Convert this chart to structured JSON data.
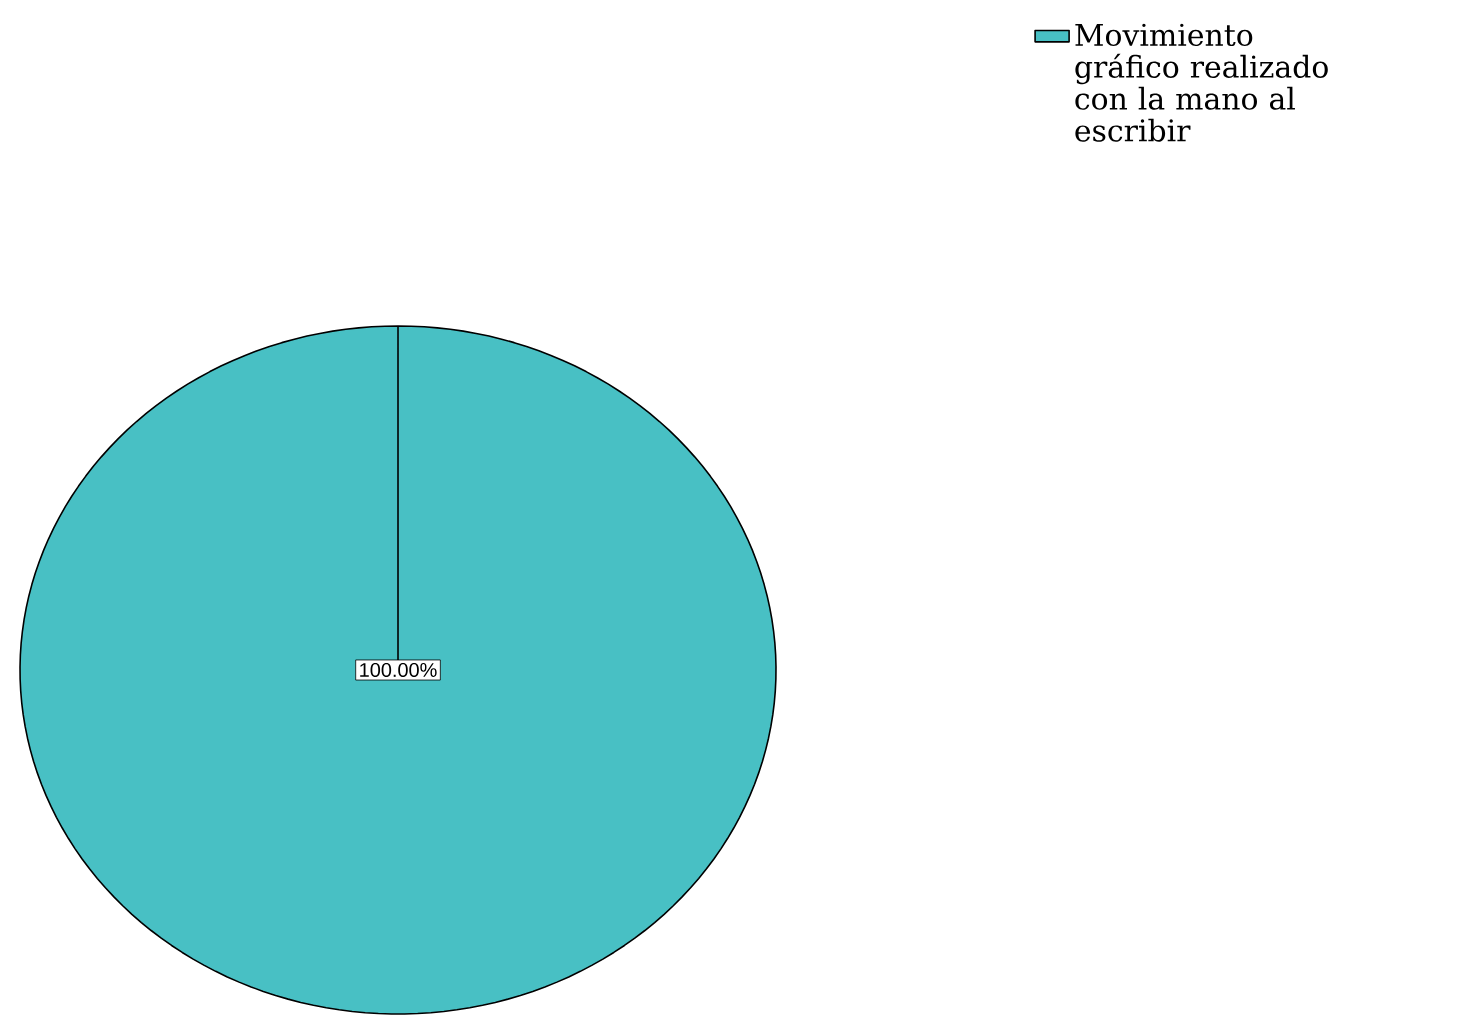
{
  "chart_data": {
    "type": "pie",
    "categories": [
      "Movimiento gráfico realizado con la mano al escribir"
    ],
    "values": [
      100
    ],
    "colors": [
      "#48c0c4"
    ],
    "value_labels": [
      "100.00%"
    ],
    "legend": "top right"
  }
}
